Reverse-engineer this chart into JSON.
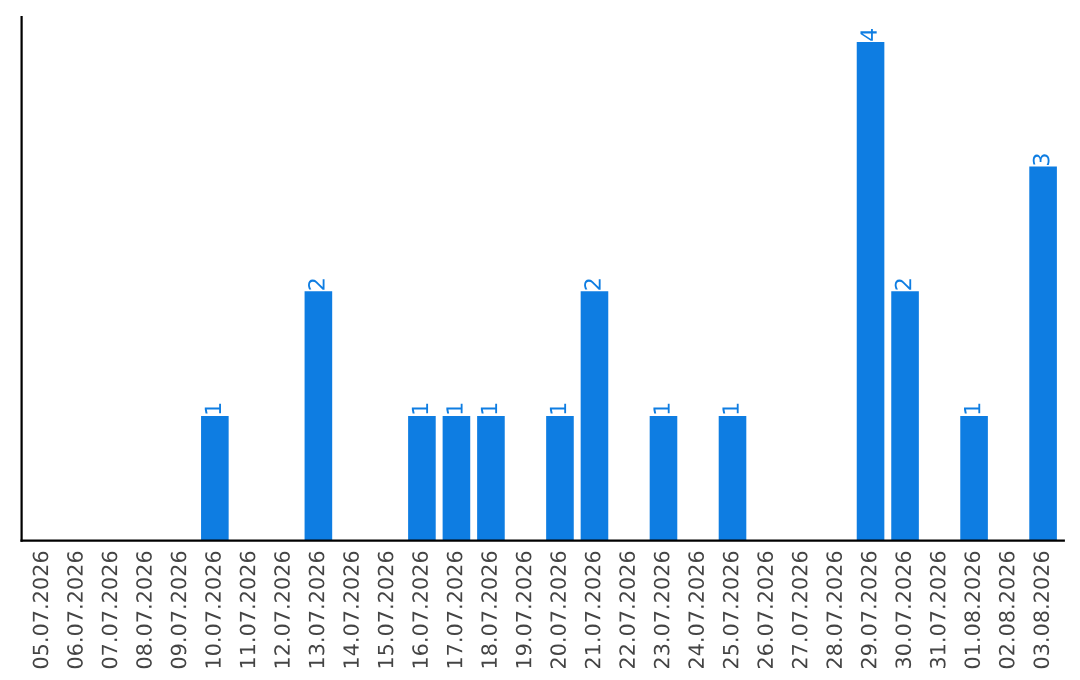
{
  "chart_data": {
    "type": "bar",
    "categories": [
      "05.07.2026",
      "06.07.2026",
      "07.07.2026",
      "08.07.2026",
      "09.07.2026",
      "10.07.2026",
      "11.07.2026",
      "12.07.2026",
      "13.07.2026",
      "14.07.2026",
      "15.07.2026",
      "16.07.2026",
      "17.07.2026",
      "18.07.2026",
      "19.07.2026",
      "20.07.2026",
      "21.07.2026",
      "22.07.2026",
      "23.07.2026",
      "24.07.2026",
      "25.07.2026",
      "26.07.2026",
      "27.07.2026",
      "28.07.2026",
      "29.07.2026",
      "30.07.2026",
      "31.07.2026",
      "01.08.2026",
      "02.08.2026",
      "03.08.2026"
    ],
    "values": [
      0,
      0,
      0,
      0,
      0,
      1,
      0,
      0,
      2,
      0,
      0,
      1,
      1,
      1,
      0,
      1,
      2,
      0,
      1,
      0,
      1,
      0,
      0,
      0,
      4,
      2,
      0,
      1,
      0,
      3
    ],
    "value_labels": [
      null,
      null,
      null,
      null,
      null,
      "1",
      null,
      null,
      "2",
      null,
      null,
      "1",
      "1",
      "1",
      null,
      "1",
      "2",
      null,
      "1",
      null,
      "1",
      null,
      null,
      null,
      "4",
      "2",
      null,
      "1",
      null,
      "3"
    ],
    "color": "#0e7de2",
    "tick_labels": "x",
    "grid": false,
    "legend": false
  }
}
